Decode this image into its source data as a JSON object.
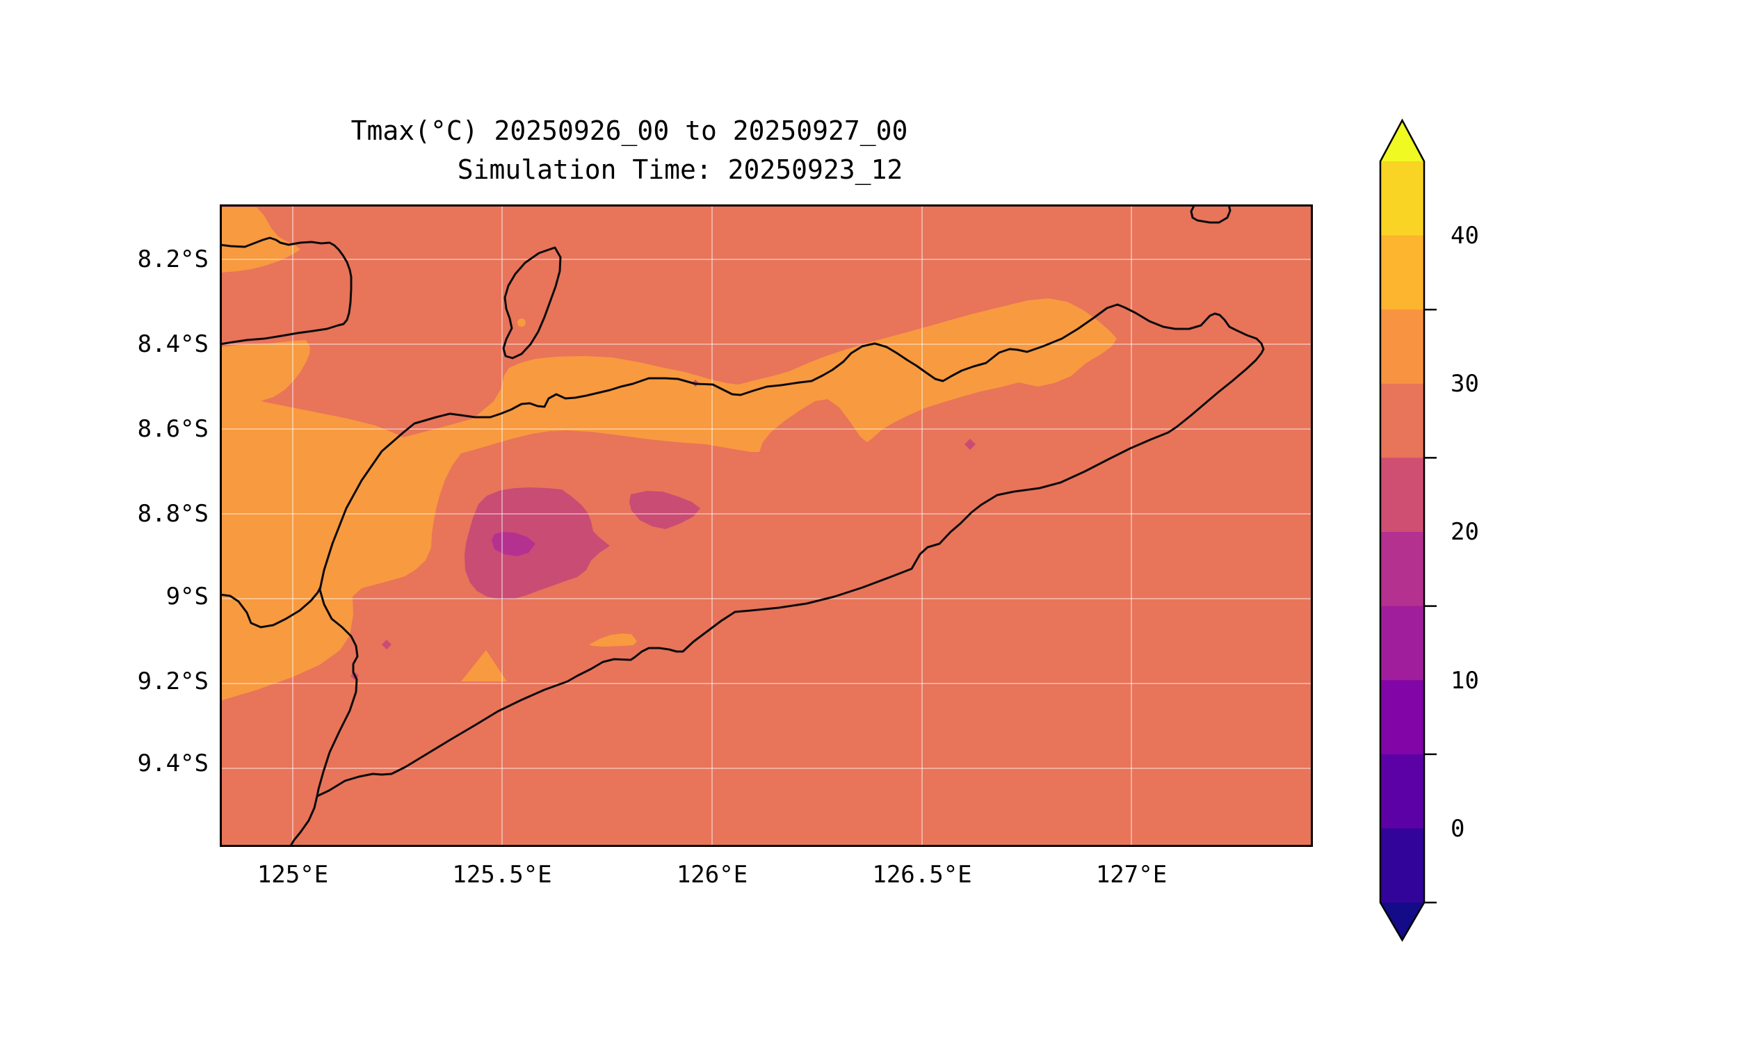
{
  "figure": {
    "title_line1": "Tmax(°C) 20250926_00 to 20250927_00",
    "title_line2": "Simulation Time: 20250923_12"
  },
  "axes": {
    "x_ticks": [
      "125°E",
      "125.5°E",
      "126°E",
      "126.5°E",
      "127°E"
    ],
    "y_ticks": [
      "8.2°S",
      "8.4°S",
      "8.6°S",
      "8.8°S",
      "9°S",
      "9.2°S",
      "9.4°S"
    ]
  },
  "colorbar": {
    "tick_labels": [
      "40",
      "30",
      "20",
      "10",
      "0"
    ],
    "levels": [
      -5,
      0,
      5,
      10,
      15,
      20,
      25,
      30,
      35,
      40,
      45
    ],
    "extend": "both",
    "band_colors_top_to_bottom": [
      "#f9d424",
      "#fdb42e",
      "#f89441",
      "#e8745a",
      "#cf4f72",
      "#b53190",
      "#a01e9b",
      "#8205a7",
      "#5c01a5",
      "#330499"
    ],
    "over_color": "#f0f921",
    "under_color": "#140b89"
  },
  "palette": {
    "band30": "#f89a40",
    "band25": "#e8745a",
    "band20": "#c94c74",
    "band15": "#b53190",
    "coastline": "#0b0b0b",
    "gridline": "rgba(255,255,255,0.55)",
    "frame": "#000000"
  },
  "chart_data": {
    "type": "heatmap",
    "subtype": "filled-contour-map",
    "title": "Tmax(°C) 20250926_00 to 20250927_00",
    "subtitle": "Simulation Time: 20250923_12",
    "variable": "Tmax",
    "units": "°C",
    "valid_period": "20250926_00 to 20250927_00",
    "simulation_time": "20250923_12",
    "xlabel_ticks": [
      "125°E",
      "125.5°E",
      "126°E",
      "126.5°E",
      "127°E"
    ],
    "ylabel_ticks": [
      "8.2°S",
      "8.4°S",
      "8.6°S",
      "8.8°S",
      "9°S",
      "9.2°S",
      "9.4°S"
    ],
    "x_extent_deg_east": [
      124.83,
      127.43
    ],
    "y_extent_deg_south": [
      8.07,
      9.58
    ],
    "grid": true,
    "colormap": "plasma",
    "contour_levels_degC": [
      -5,
      0,
      5,
      10,
      15,
      20,
      25,
      30,
      35,
      40,
      45
    ],
    "colorbar_ticks": [
      40,
      30,
      20,
      10,
      0
    ],
    "colorbar_extend": "both",
    "region_values": [
      {
        "area": "sea and most of Timor island (background)",
        "tmax_degC": "25-30"
      },
      {
        "area": "elongated ridge band from ~125.0°E 9.2°S northeast to ~127.0°E 8.45°S, plus NW corner patch, patch below Alor coast, small patches near south coast and on Atauro island",
        "tmax_degC": "30-35"
      },
      {
        "area": "highland blob centered ~125.58°E 8.88°S, secondary blob ~125.95°E 8.73°S, tiny specks at ~126.6°E 8.64°S, ~125.23°E 9.12°S, ~125.15°E 9.19°S, ~125.96°E 8.49°S",
        "tmax_degC": "20-25"
      },
      {
        "area": "core of highland blob ~125.55°E 8.89°S",
        "tmax_degC": "15-20"
      }
    ],
    "map_features": [
      "Timor island coastline",
      "Alor island coastline (top-left)",
      "Atauro island",
      "Kisar island (top-right, clipped)"
    ]
  }
}
